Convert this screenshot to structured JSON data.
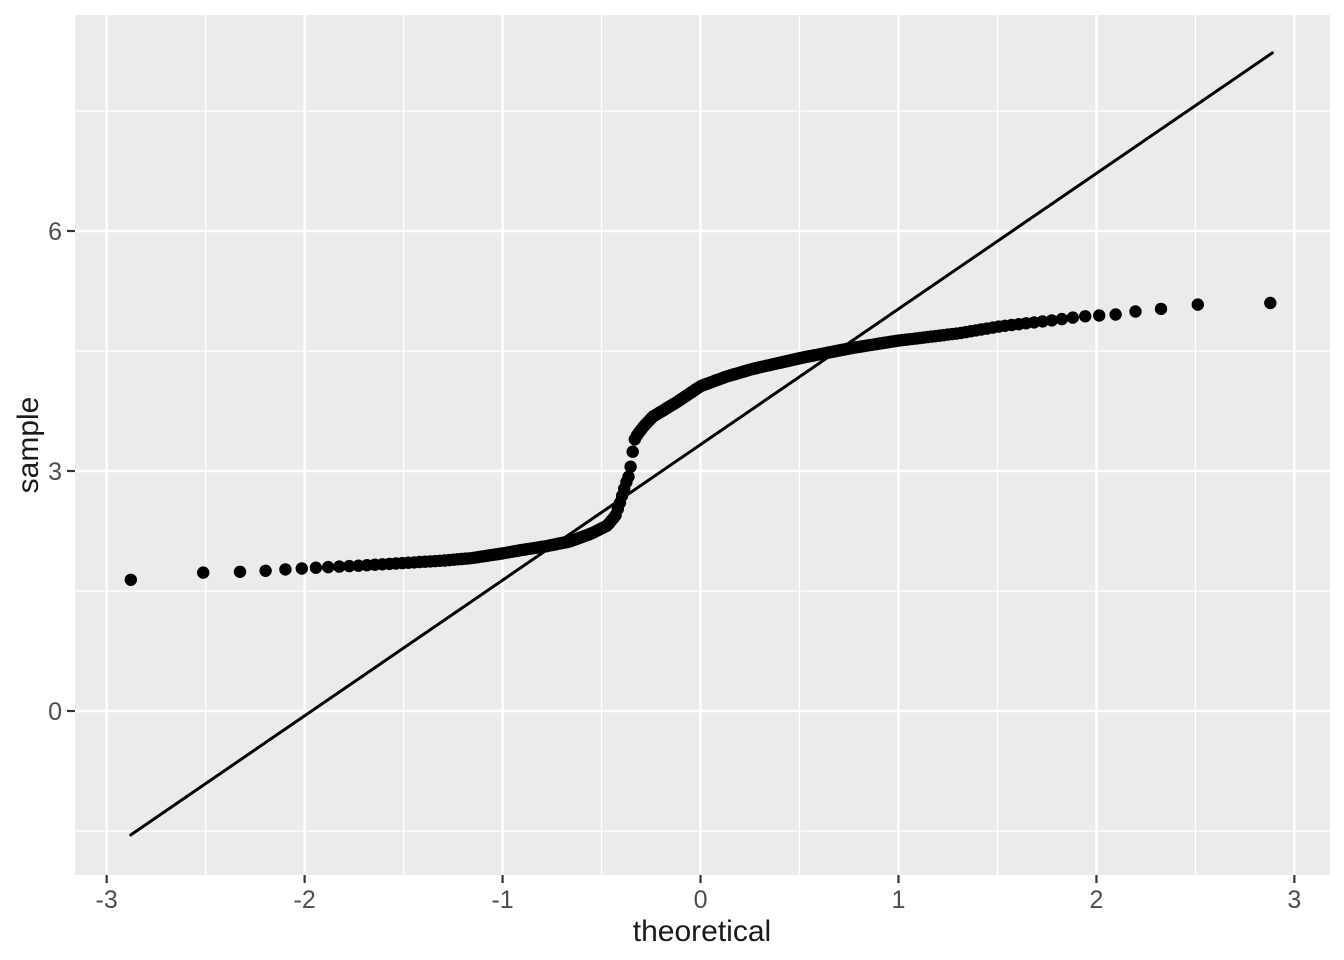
{
  "chart_data": {
    "type": "scatter",
    "subtype": "qq-plot",
    "title": "",
    "xlabel": "theoretical",
    "ylabel": "sample",
    "x_ticks": [
      -3,
      -2,
      -1,
      0,
      1,
      2,
      3
    ],
    "y_ticks": [
      0,
      3,
      6
    ],
    "x_minor_gridlines": [
      -2.5,
      -1.5,
      -0.5,
      0.5,
      1.5,
      2.5
    ],
    "y_minor_gridlines": [
      -1.5,
      1.5,
      4.5,
      7.5
    ],
    "xlim": [
      -3.16,
      3.18
    ],
    "ylim": [
      -2.05,
      8.7
    ],
    "grid": true,
    "legend_position": "none",
    "n_points": 250,
    "points_description": "Sample quantiles vs standard normal theoretical quantiles; curve read from plot as (theoretical, sample) knots, points lie on this curve at qnorm((i-0.5)/250)",
    "quantile_curve": [
      [
        -2.878,
        1.64
      ],
      [
        -2.51,
        1.73
      ],
      [
        -2.32,
        1.74
      ],
      [
        -2.21,
        1.75
      ],
      [
        -2.1,
        1.77
      ],
      [
        -1.95,
        1.79
      ],
      [
        -1.7,
        1.82
      ],
      [
        -1.5,
        1.85
      ],
      [
        -1.3,
        1.88
      ],
      [
        -1.16,
        1.91
      ],
      [
        -1.0,
        1.97
      ],
      [
        -0.91,
        2.01
      ],
      [
        -0.78,
        2.06
      ],
      [
        -0.66,
        2.12
      ],
      [
        -0.55,
        2.22
      ],
      [
        -0.47,
        2.32
      ],
      [
        -0.43,
        2.44
      ],
      [
        -0.41,
        2.58
      ],
      [
        -0.395,
        2.7
      ],
      [
        -0.375,
        2.86
      ],
      [
        -0.36,
        2.95
      ],
      [
        -0.35,
        3.1
      ],
      [
        -0.335,
        3.38
      ],
      [
        -0.32,
        3.45
      ],
      [
        -0.29,
        3.55
      ],
      [
        -0.24,
        3.68
      ],
      [
        -0.12,
        3.86
      ],
      [
        0.0,
        4.06
      ],
      [
        0.13,
        4.18
      ],
      [
        0.27,
        4.28
      ],
      [
        0.52,
        4.42
      ],
      [
        0.77,
        4.54
      ],
      [
        1.0,
        4.63
      ],
      [
        1.3,
        4.72
      ],
      [
        1.52,
        4.81
      ],
      [
        1.8,
        4.89
      ],
      [
        1.92,
        4.93
      ],
      [
        2.12,
        4.96
      ],
      [
        2.21,
        5.0
      ],
      [
        2.34,
        5.03
      ],
      [
        2.51,
        5.08
      ],
      [
        2.878,
        5.1
      ]
    ],
    "reference_line": {
      "intercept": 3.33,
      "slope": 1.695,
      "t_min": -2.878,
      "t_max": 2.889
    },
    "colors": {
      "panel_background": "#EBEBEB",
      "gridline": "#FFFFFF",
      "point": "#000000",
      "reference_line": "#000000",
      "tick_mark": "#333333",
      "tick_label": "#4D4D4D",
      "axis_title": "#1a1a1a",
      "page_background": "#FFFFFF"
    }
  }
}
